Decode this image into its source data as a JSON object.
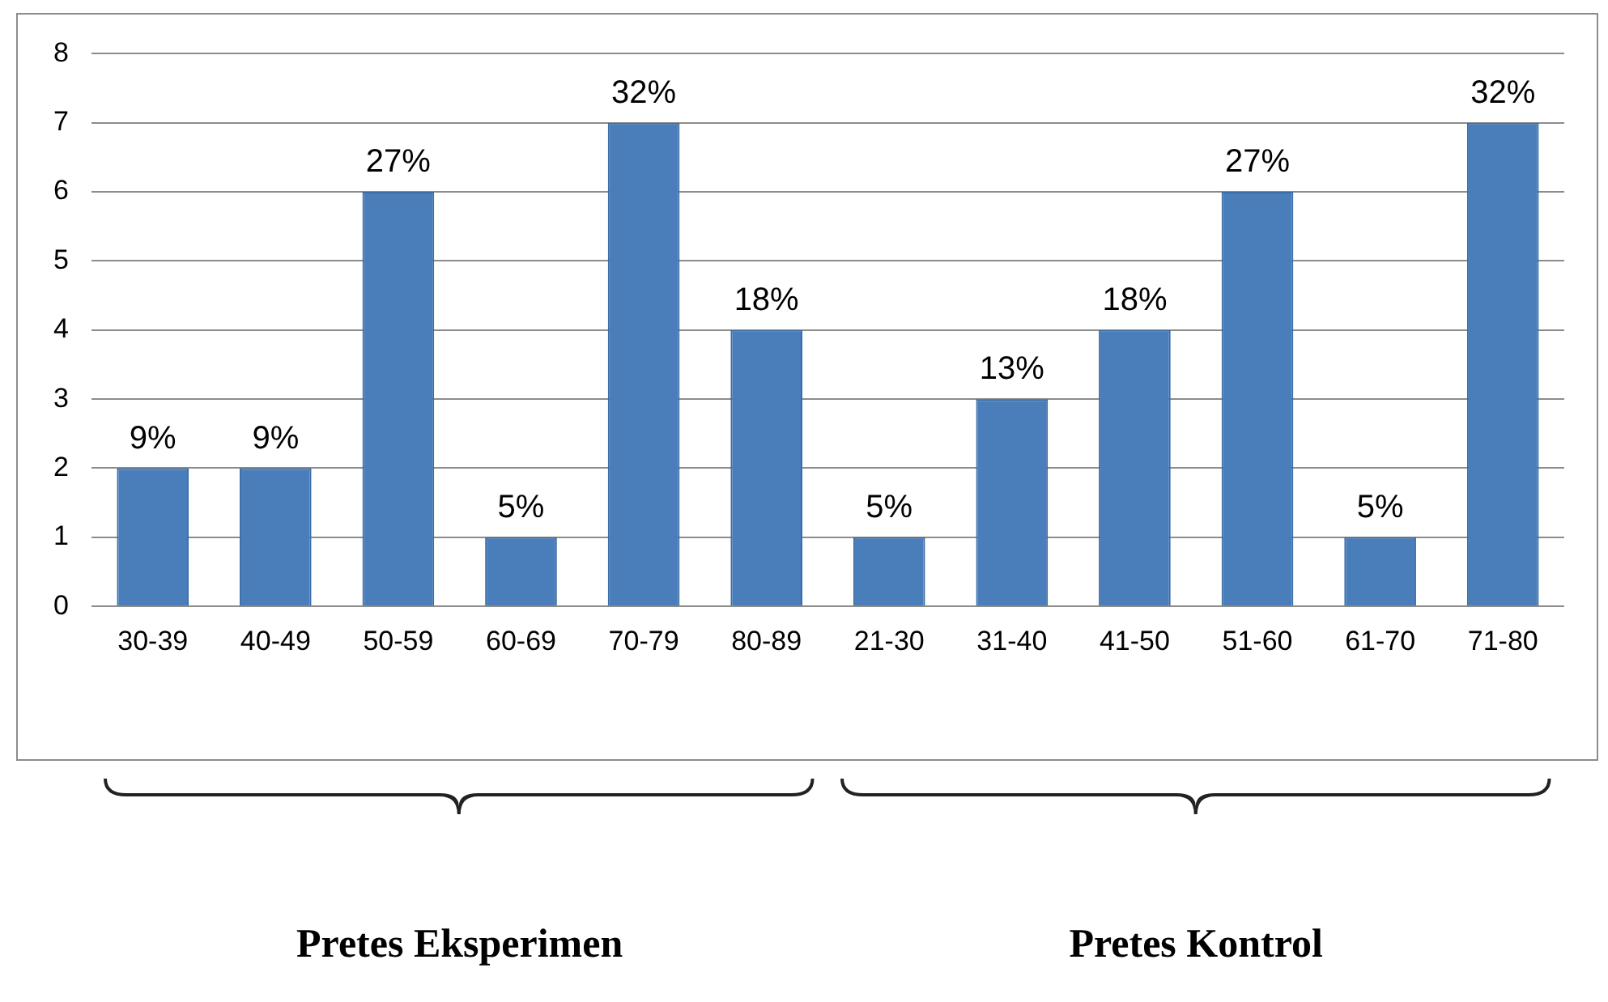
{
  "chart_data": {
    "type": "bar",
    "categories": [
      "30-39",
      "40-49",
      "50-59",
      "60-69",
      "70-79",
      "80-89",
      "21-30",
      "31-40",
      "41-50",
      "51-60",
      "61-70",
      "71-80"
    ],
    "values": [
      2,
      2,
      6,
      1,
      7,
      4,
      1,
      3,
      4,
      6,
      1,
      7
    ],
    "color": "#4a7ebb",
    "ylim": [
      0,
      8
    ],
    "yticks": [
      0,
      1,
      2,
      3,
      4,
      5,
      6,
      7,
      8
    ],
    "grid": "y",
    "legend": false,
    "annotations": [
      "Pretes Eksperimen",
      "Pretes Kontrol",
      {
        "text": "9%",
        "x": "30-39",
        "y": 2
      },
      {
        "text": "9%",
        "x": "40-49",
        "y": 2
      },
      {
        "text": "27%",
        "x": "50-59",
        "y": 6
      },
      {
        "text": "5%",
        "x": "60-69",
        "y": 1
      },
      {
        "text": "32%",
        "x": "70-79",
        "y": 7
      },
      {
        "text": "18%",
        "x": "80-89",
        "y": 4
      },
      {
        "text": "5%",
        "x": "21-30",
        "y": 1
      },
      {
        "text": "13%",
        "x": "31-40",
        "y": 3
      },
      {
        "text": "18%",
        "x": "41-50",
        "y": 4
      },
      {
        "text": "27%",
        "x": "51-60",
        "y": 6
      },
      {
        "text": "5%",
        "x": "61-70",
        "y": 1
      },
      {
        "text": "32%",
        "x": "71-80",
        "y": 7
      }
    ]
  }
}
